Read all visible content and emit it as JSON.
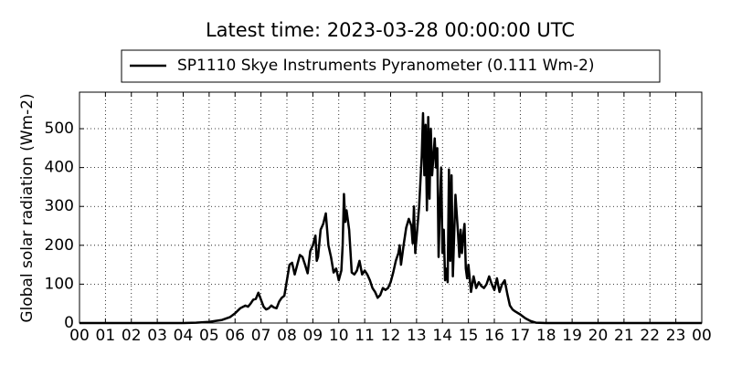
{
  "chart_data": {
    "type": "line",
    "title": "Latest time: 2023-03-28 00:00:00 UTC",
    "ylabel": "Global solar radiation (Wm-2)",
    "series": [
      {
        "name": "SP1110 Skye Instruments Pyranometer (0.111 Wm-2)",
        "color": "#000000",
        "x": [
          0,
          4,
          4.5,
          5,
          5.5,
          5.8,
          6,
          6.2,
          6.4,
          6.5,
          6.6,
          6.7,
          6.8,
          6.9,
          7,
          7.1,
          7.2,
          7.3,
          7.4,
          7.5,
          7.6,
          7.7,
          7.8,
          7.9,
          8,
          8.1,
          8.2,
          8.3,
          8.4,
          8.5,
          8.6,
          8.7,
          8.8,
          8.9,
          9,
          9.1,
          9.15,
          9.2,
          9.3,
          9.4,
          9.5,
          9.6,
          9.7,
          9.8,
          9.9,
          10,
          10.1,
          10.15,
          10.2,
          10.25,
          10.3,
          10.4,
          10.5,
          10.6,
          10.7,
          10.8,
          10.9,
          11,
          11.1,
          11.2,
          11.3,
          11.4,
          11.5,
          11.6,
          11.7,
          11.8,
          11.9,
          12,
          12.1,
          12.2,
          12.3,
          12.35,
          12.4,
          12.5,
          12.6,
          12.7,
          12.8,
          12.85,
          12.9,
          12.95,
          13,
          13.1,
          13.2,
          13.25,
          13.3,
          13.35,
          13.4,
          13.45,
          13.5,
          13.55,
          13.6,
          13.7,
          13.75,
          13.8,
          13.85,
          13.9,
          13.95,
          14,
          14.05,
          14.1,
          14.15,
          14.2,
          14.25,
          14.3,
          14.35,
          14.4,
          14.5,
          14.6,
          14.65,
          14.7,
          14.75,
          14.8,
          14.85,
          14.9,
          14.95,
          15,
          15.1,
          15.2,
          15.3,
          15.4,
          15.5,
          15.6,
          15.7,
          15.8,
          15.9,
          16,
          16.1,
          16.2,
          16.3,
          16.4,
          16.5,
          16.6,
          16.7,
          16.8,
          17,
          17.2,
          17.4,
          17.6,
          18,
          24
        ],
        "values": [
          0,
          0,
          1,
          3,
          8,
          15,
          25,
          38,
          45,
          42,
          50,
          60,
          62,
          78,
          60,
          42,
          35,
          38,
          45,
          40,
          38,
          55,
          65,
          70,
          110,
          150,
          155,
          125,
          150,
          175,
          170,
          150,
          128,
          185,
          200,
          225,
          160,
          170,
          240,
          255,
          282,
          200,
          170,
          130,
          140,
          110,
          135,
          200,
          332,
          260,
          290,
          240,
          130,
          125,
          135,
          160,
          125,
          135,
          125,
          110,
          90,
          80,
          65,
          72,
          90,
          85,
          90,
          105,
          130,
          160,
          180,
          200,
          150,
          200,
          245,
          268,
          250,
          205,
          300,
          180,
          220,
          300,
          430,
          540,
          380,
          510,
          290,
          530,
          320,
          500,
          380,
          475,
          400,
          450,
          170,
          300,
          400,
          180,
          240,
          110,
          140,
          105,
          395,
          160,
          380,
          120,
          330,
          230,
          170,
          240,
          180,
          225,
          255,
          140,
          115,
          150,
          80,
          120,
          90,
          105,
          95,
          90,
          100,
          120,
          100,
          85,
          115,
          80,
          100,
          110,
          75,
          45,
          35,
          30,
          22,
          12,
          5,
          1,
          0,
          0
        ]
      }
    ],
    "xlim": [
      0,
      24
    ],
    "ylim": [
      0,
      594
    ],
    "xticks": [
      {
        "value": 0,
        "label": "00"
      },
      {
        "value": 1,
        "label": "01"
      },
      {
        "value": 2,
        "label": "02"
      },
      {
        "value": 3,
        "label": "03"
      },
      {
        "value": 4,
        "label": "04"
      },
      {
        "value": 5,
        "label": "05"
      },
      {
        "value": 6,
        "label": "06"
      },
      {
        "value": 7,
        "label": "07"
      },
      {
        "value": 8,
        "label": "08"
      },
      {
        "value": 9,
        "label": "09"
      },
      {
        "value": 10,
        "label": "10"
      },
      {
        "value": 11,
        "label": "11"
      },
      {
        "value": 12,
        "label": "12"
      },
      {
        "value": 13,
        "label": "13"
      },
      {
        "value": 14,
        "label": "14"
      },
      {
        "value": 15,
        "label": "15"
      },
      {
        "value": 16,
        "label": "16"
      },
      {
        "value": 17,
        "label": "17"
      },
      {
        "value": 18,
        "label": "18"
      },
      {
        "value": 19,
        "label": "19"
      },
      {
        "value": 20,
        "label": "20"
      },
      {
        "value": 21,
        "label": "21"
      },
      {
        "value": 22,
        "label": "22"
      },
      {
        "value": 23,
        "label": "23"
      },
      {
        "value": 24,
        "label": "00"
      }
    ],
    "yticks": [
      0,
      100,
      200,
      300,
      400,
      500
    ],
    "grid": true
  }
}
